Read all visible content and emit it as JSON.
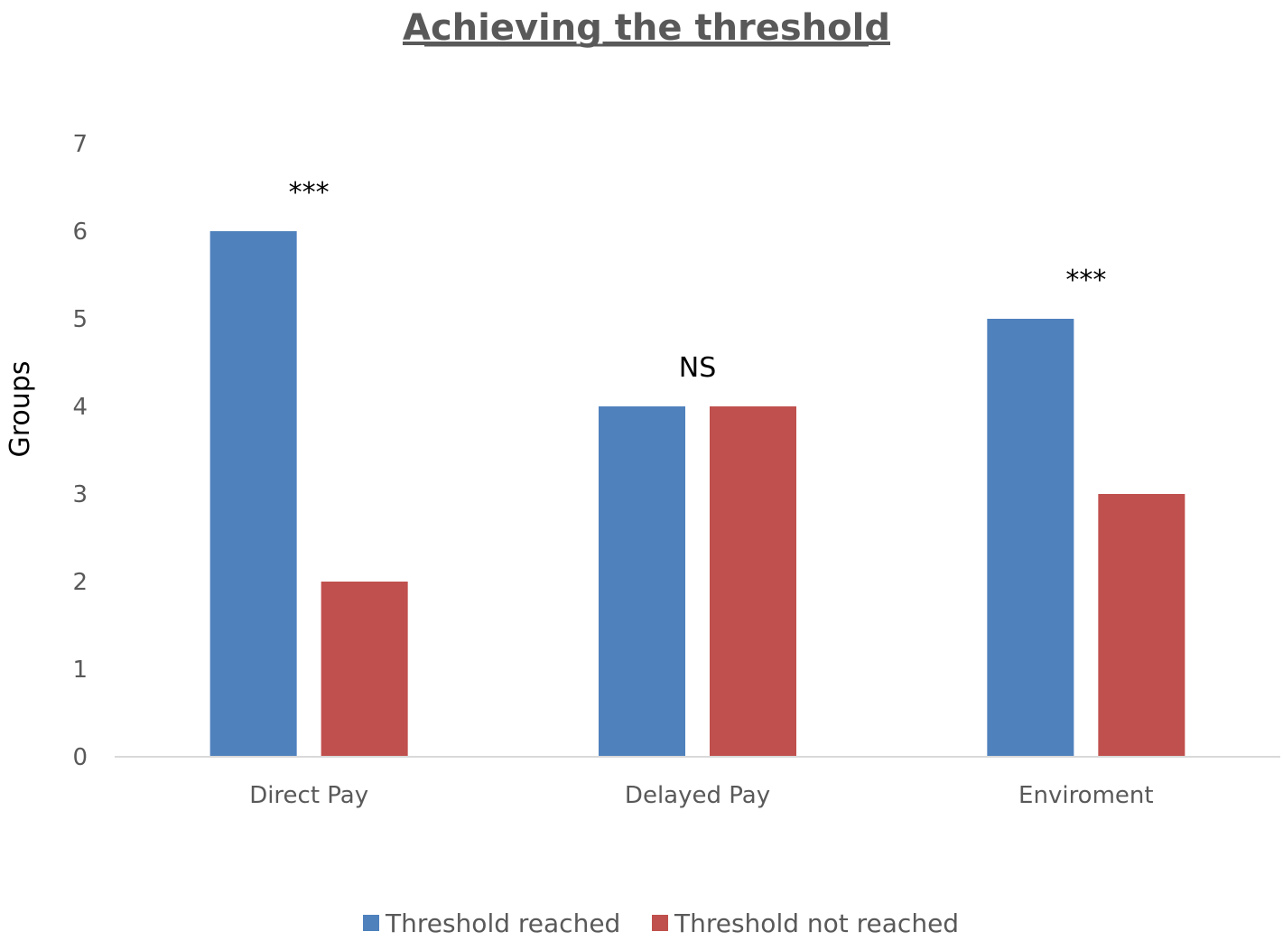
{
  "chart_data": {
    "type": "bar",
    "title": "Achieving the threshold",
    "xlabel": "",
    "ylabel": "Groups",
    "categories": [
      "Direct Pay",
      "Delayed Pay",
      "Enviroment"
    ],
    "series": [
      {
        "name": "Threshold reached",
        "color": "#4F81BD",
        "values": [
          6,
          4,
          5
        ]
      },
      {
        "name": "Threshold not reached",
        "color": "#C0504D",
        "values": [
          2,
          4,
          3
        ]
      }
    ],
    "ylim": [
      0,
      7
    ],
    "yticks": [
      "0",
      "1",
      "2",
      "3",
      "4",
      "5",
      "6",
      "7"
    ],
    "annotations": [
      "***",
      "NS",
      "***"
    ],
    "grid": false,
    "legend_position": "bottom"
  }
}
